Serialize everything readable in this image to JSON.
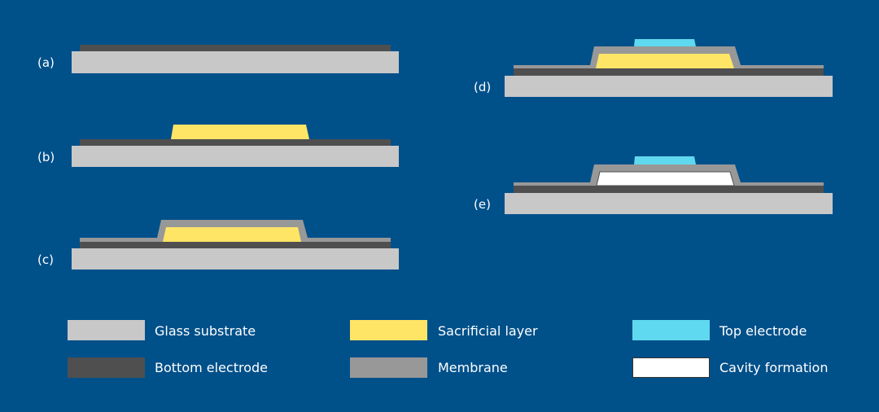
{
  "colors": {
    "background": "#00508a",
    "glass": "#c8c8c8",
    "bottom_electrode": "#4f4f4f",
    "membrane": "#989898",
    "sacrificial": "#ffe566",
    "top_electrode": "#5fd9ef",
    "cavity": "#ffffff"
  },
  "steps": [
    {
      "label": "(a)"
    },
    {
      "label": "(b)"
    },
    {
      "label": "(c)"
    },
    {
      "label": "(d)"
    },
    {
      "label": "(e)"
    }
  ],
  "legend": [
    {
      "label": "Glass substrate"
    },
    {
      "label": "Bottom electrode"
    },
    {
      "label": "Sacrificial layer"
    },
    {
      "label": "Membrane"
    },
    {
      "label": "Top electrode"
    },
    {
      "label": "Cavity formation"
    }
  ]
}
